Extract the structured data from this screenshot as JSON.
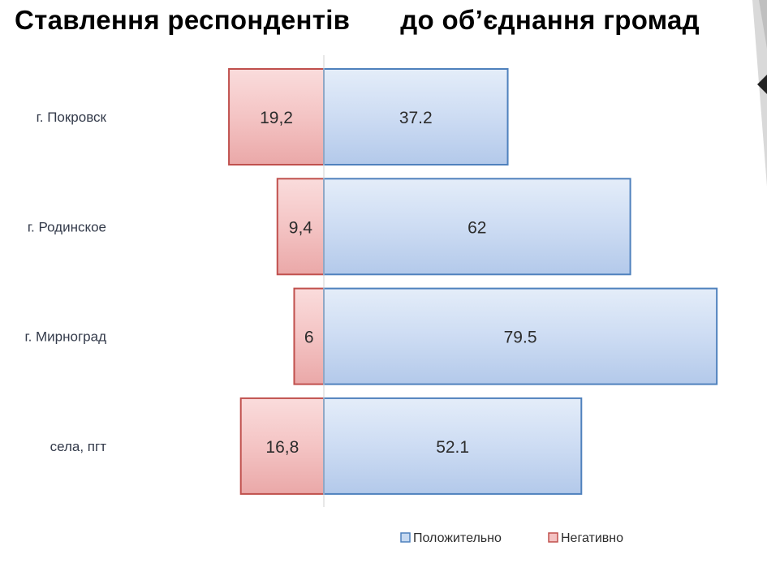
{
  "slide": {
    "title_part1": "Ставлення респондентів",
    "title_part2": "до об’єднання громад"
  },
  "chart_data": {
    "type": "bar",
    "orientation": "horizontal",
    "categories": [
      "г. Покровск",
      "г. Родинское",
      "г. Мирноград",
      "села, пгт"
    ],
    "series": [
      {
        "name": "Положительно",
        "values": [
          37.2,
          62,
          79.5,
          52.1
        ],
        "labels": [
          "37.2",
          "62",
          "79.5",
          "52.1"
        ],
        "color": "#c6d9f1",
        "edge_color": "#4f81bd"
      },
      {
        "name": "Негативно",
        "values": [
          19.2,
          9.4,
          6,
          16.8
        ],
        "labels": [
          "19,2",
          "9,4",
          "6",
          "16,8"
        ],
        "color": "#f4c2c2",
        "edge_color": "#c0504d"
      }
    ],
    "legend": {
      "position": "bottom",
      "items": [
        "Положительно",
        "Негативно"
      ]
    },
    "grid": false,
    "xlim": [
      -20,
      80
    ],
    "axis": "center line at zero; positive to the right, negative to the left"
  }
}
